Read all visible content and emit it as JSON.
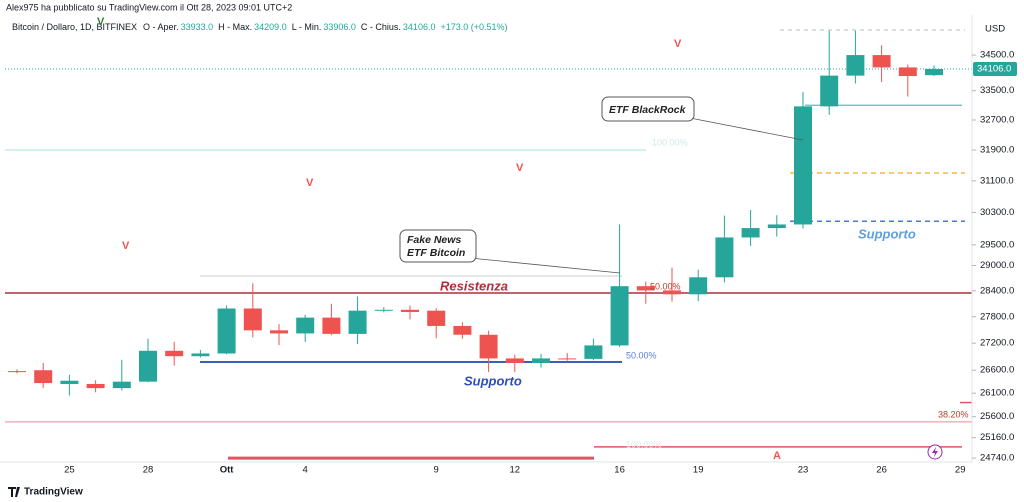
{
  "header": {
    "credit": "Alex975 ha pubblicato su TradingView.com il Ott 28, 2023 09:01 UTC+2",
    "symbol": "Bitcoin / Dollaro, 1D, BITFINEX",
    "ohlc": [
      {
        "name": "O - Aper.",
        "value": "33933.0"
      },
      {
        "name": "H - Max.",
        "value": "34209.0"
      },
      {
        "name": "L - Min.",
        "value": "33906.0"
      },
      {
        "name": "C - Chius.",
        "value": "34106.0"
      }
    ],
    "change": "+173.0 (+0.51%)"
  },
  "chart_data": {
    "type": "candlestick",
    "categories": [
      null,
      null,
      "25",
      null,
      null,
      "28",
      null,
      null,
      "Ott",
      null,
      null,
      "4",
      null,
      null,
      null,
      null,
      "9",
      null,
      null,
      "12",
      null,
      null,
      null,
      "16",
      null,
      null,
      "19",
      null,
      null,
      null,
      "23",
      null,
      null,
      "26",
      null,
      null,
      "29"
    ],
    "open": [
      26580,
      26600,
      26300,
      26300,
      26210,
      26350,
      27030,
      26910,
      26970,
      27990,
      27490,
      27420,
      27780,
      27410,
      27940,
      27960,
      27940,
      27590,
      27390,
      26860,
      26760,
      26860,
      26850,
      27150,
      28510,
      28410,
      28320,
      28720,
      29680,
      29910,
      30000,
      33070,
      33920,
      34500,
      34150,
      33933,
      null
    ],
    "high": [
      26620,
      26760,
      26500,
      26380,
      26830,
      27300,
      27230,
      27050,
      28060,
      28580,
      27630,
      27840,
      28100,
      28270,
      28020,
      28060,
      28000,
      27670,
      27480,
      26940,
      26960,
      26980,
      27300,
      30000,
      28620,
      28950,
      28900,
      30220,
      30360,
      30230,
      33460,
      35200,
      35200,
      34780,
      34230,
      34209,
      null
    ],
    "low": [
      26530,
      26210,
      26050,
      26120,
      26160,
      26340,
      26700,
      26880,
      26950,
      27330,
      27160,
      27230,
      27380,
      27180,
      27900,
      27740,
      27310,
      27300,
      26560,
      26560,
      26660,
      26810,
      26820,
      27110,
      28100,
      28150,
      28160,
      28600,
      29470,
      29700,
      29900,
      32840,
      33700,
      33740,
      33340,
      33906,
      null
    ],
    "close": [
      26570,
      26320,
      26370,
      26210,
      26350,
      27030,
      26910,
      26970,
      27990,
      27490,
      27420,
      27780,
      27410,
      27940,
      27960,
      27910,
      27590,
      27390,
      26860,
      26760,
      26860,
      26850,
      27150,
      28510,
      28410,
      28320,
      28720,
      29680,
      29910,
      30000,
      33070,
      33920,
      34500,
      34150,
      33910,
      34106,
      null
    ],
    "up_color": "#26a69a",
    "down_color": "#ef5350",
    "log_scale": true,
    "ylim": [
      24660,
      35660
    ],
    "yticks": [
      {
        "value": 34500,
        "label": "34500.0"
      },
      {
        "value": 33500,
        "label": "33500.0"
      },
      {
        "value": 32700,
        "label": "32700.0"
      },
      {
        "value": 31900,
        "label": "31900.0"
      },
      {
        "value": 31100,
        "label": "31100.0"
      },
      {
        "value": 30300,
        "label": "30300.0"
      },
      {
        "value": 29500,
        "label": "29500.0"
      },
      {
        "value": 29000,
        "label": "29000.0"
      },
      {
        "value": 28400,
        "label": "28400.0"
      },
      {
        "value": 27800,
        "label": "27800.0"
      },
      {
        "value": 27200,
        "label": "27200.0"
      },
      {
        "value": 26600,
        "label": "26600.0"
      },
      {
        "value": 26100,
        "label": "26100.0"
      },
      {
        "value": 25600,
        "label": "25600.0"
      },
      {
        "value": 25160,
        "label": "25160.0"
      },
      {
        "value": 24740,
        "label": "24740.0"
      }
    ],
    "y_axis_label": "USD",
    "last_price": {
      "value": 34106,
      "label": "34106.0"
    },
    "levels": [
      {
        "price": 35220,
        "color": "#bbbbbb"
      },
      {
        "price": 34106,
        "color": "#26a69a"
      },
      {
        "price": 33100,
        "color": "#4fc3c7"
      },
      {
        "price": 31900,
        "color": "#a8e0e2"
      },
      {
        "price": 31300,
        "color": "#f5b942"
      },
      {
        "price": 30080,
        "color": "#4a7bd0"
      },
      {
        "price": 28750,
        "color": "#cccccc"
      },
      {
        "price": 28350,
        "color": "#b22d3a"
      },
      {
        "price": 26780,
        "color": "#3b5fc0"
      },
      {
        "price": 25900,
        "color": "#e05560"
      },
      {
        "price": 25490,
        "color": "#e88a92"
      },
      {
        "price": 24970,
        "color": "#e05560"
      },
      {
        "price": 24740,
        "color": "#e05560"
      }
    ],
    "annotations": {
      "resistance": "Resistenza",
      "support_1": "Supporto",
      "support_2": "Supporto",
      "callout_1": [
        "Fake News",
        "ETF Bitcoin"
      ],
      "callout_2": "ETF BlackRock",
      "fib_labels": [
        "50.00%",
        "50.00%",
        "38.20%",
        "100.00%",
        "100.00%"
      ],
      "markers": [
        "V",
        "V",
        "V",
        "V",
        "V",
        "A"
      ]
    }
  },
  "footer": {
    "brand": "TradingView"
  }
}
